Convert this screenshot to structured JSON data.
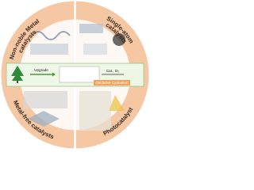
{
  "quadrants": [
    {
      "lines": [
        "Non-noble Metal",
        "catalysts"
      ]
    },
    {
      "lines": [
        "Single-atom",
        "catalysts"
      ]
    },
    {
      "lines": [
        "Metal-free catalysts"
      ]
    },
    {
      "lines": [
        "Photocatalyst"
      ]
    }
  ],
  "center": {
    "step": "Upgrade",
    "condition": "Cat., O₂",
    "reaction": "Oxidative Cyanation"
  }
}
